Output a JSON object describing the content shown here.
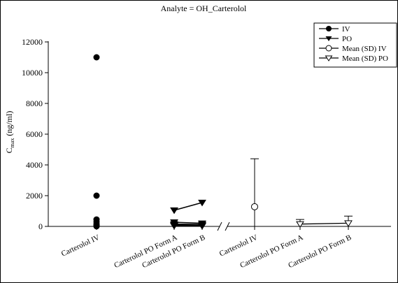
{
  "chart_data": {
    "type": "scatter",
    "title": "Analyte = OH_Carterolol",
    "ylabel_main": "C",
    "ylabel_sub": "max",
    "ylabel_unit": " (ng/ml)",
    "ylim": [
      0,
      12000
    ],
    "yticks": [
      0,
      2000,
      4000,
      6000,
      8000,
      10000,
      12000
    ],
    "categories_left": [
      "Carterolol IV",
      "Carterolol PO Form A",
      "Carterolol PO Form B"
    ],
    "categories_right": [
      "Carterolol IV",
      "Carterolol PO Form A",
      "Carterolol PO Form B"
    ],
    "legend": [
      "IV",
      "PO",
      "Mean (SD) IV",
      "Mean (SD) PO"
    ],
    "legend_position": "top-right",
    "grid": false,
    "axis_break": true,
    "iv_individual": [
      11000,
      2000,
      450,
      300,
      150,
      60,
      10
    ],
    "po_paired": [
      [
        1050,
        1550
      ],
      [
        270,
        200
      ],
      [
        150,
        120
      ],
      [
        90,
        70
      ],
      [
        40,
        30
      ]
    ],
    "mean_sd_iv": {
      "mean": 1280,
      "sd": 3120
    },
    "mean_sd_po": {
      "mean": [
        150,
        210
      ],
      "sd": [
        300,
        460
      ]
    }
  }
}
